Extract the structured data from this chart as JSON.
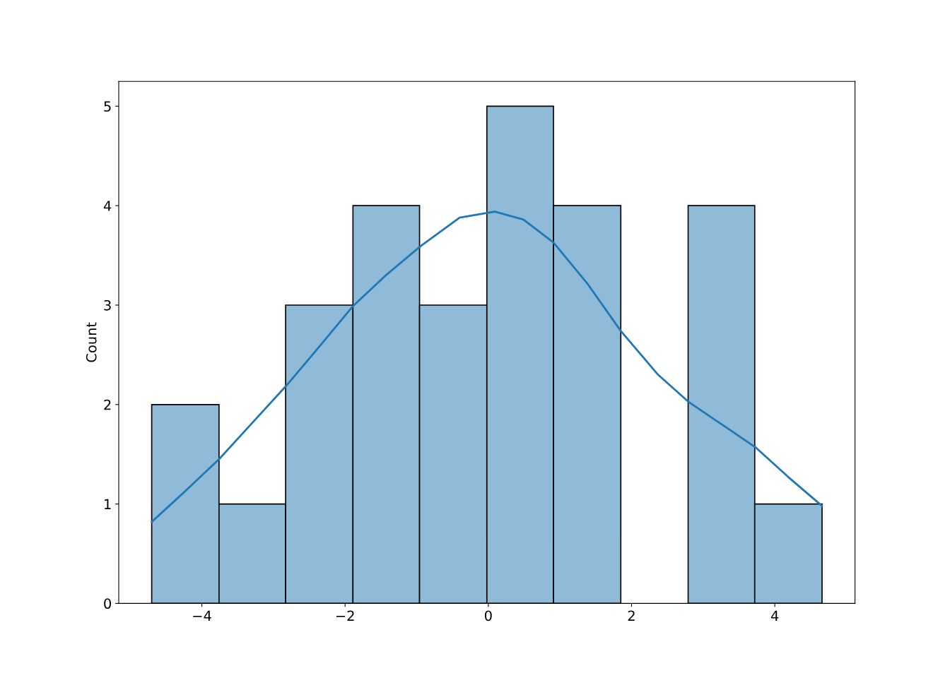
{
  "chart_data": {
    "type": "histogram",
    "ylabel": "Count",
    "bins": [
      -4.7,
      -3.76,
      -2.83,
      -1.89,
      -0.96,
      -0.02,
      0.91,
      1.85,
      2.79,
      3.72,
      4.66
    ],
    "values": [
      2,
      1,
      3,
      4,
      3,
      5,
      4,
      0,
      4,
      1
    ],
    "color": "#8fbbd9",
    "series": [
      {
        "type": "line",
        "color": "#1f77b4",
        "x": [
          -4.7,
          -4.23,
          -3.76,
          -3.29,
          -2.82,
          -2.35,
          -1.89,
          -1.43,
          -0.95,
          -0.4,
          0.09,
          0.49,
          0.91,
          1.38,
          1.85,
          2.37,
          2.79,
          3.26,
          3.73,
          4.19,
          4.66
        ],
        "values": [
          0.82,
          1.13,
          1.45,
          1.82,
          2.19,
          2.59,
          2.99,
          3.3,
          3.59,
          3.88,
          3.94,
          3.86,
          3.63,
          3.22,
          2.74,
          2.3,
          2.03,
          1.8,
          1.57,
          1.27,
          0.98
        ]
      }
    ],
    "xlim": [
      -5.16,
      5.12
    ],
    "ylim": [
      0,
      5.25
    ],
    "xticks": [
      {
        "value": -4,
        "label": "−4"
      },
      {
        "value": -2,
        "label": "−2"
      },
      0,
      2,
      4
    ],
    "yticks": [
      0,
      1,
      2,
      3,
      4,
      5
    ],
    "grid": false
  }
}
